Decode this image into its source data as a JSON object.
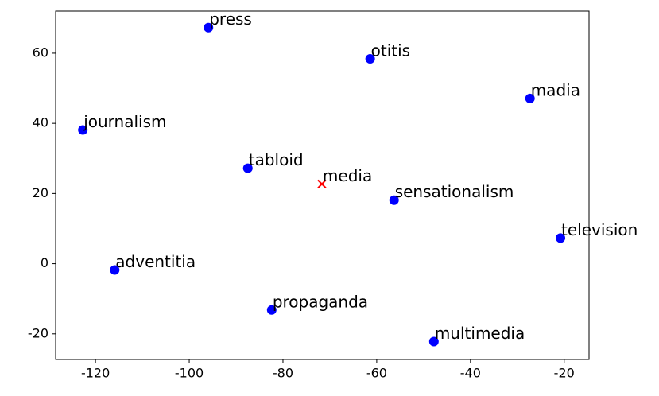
{
  "chart_data": {
    "type": "scatter",
    "xlim": [
      -128.5,
      -14.7
    ],
    "ylim": [
      -27.3,
      72.0
    ],
    "xticks": [
      -120,
      -100,
      -80,
      -60,
      -40,
      -20
    ],
    "yticks": [
      -20,
      0,
      20,
      40,
      60
    ],
    "series": [
      {
        "color": "#0000ff",
        "marker": "o",
        "labels": [
          "press",
          "otitis",
          "madia",
          "journalism",
          "tabloid",
          "sensationalism",
          "television",
          "adventitia",
          "propaganda",
          "multimedia"
        ],
        "x": [
          -95.9,
          -61.4,
          -27.3,
          -122.7,
          -87.5,
          -56.3,
          -20.8,
          -115.9,
          -82.4,
          -47.8
        ],
        "y": [
          67.3,
          58.4,
          47.1,
          38.1,
          27.2,
          18.1,
          7.3,
          -1.8,
          -13.2,
          -22.2
        ]
      },
      {
        "color": "#ff0000",
        "marker": "x",
        "labels": [
          "media"
        ],
        "x": [
          -71.7
        ],
        "y": [
          22.7
        ]
      }
    ]
  }
}
